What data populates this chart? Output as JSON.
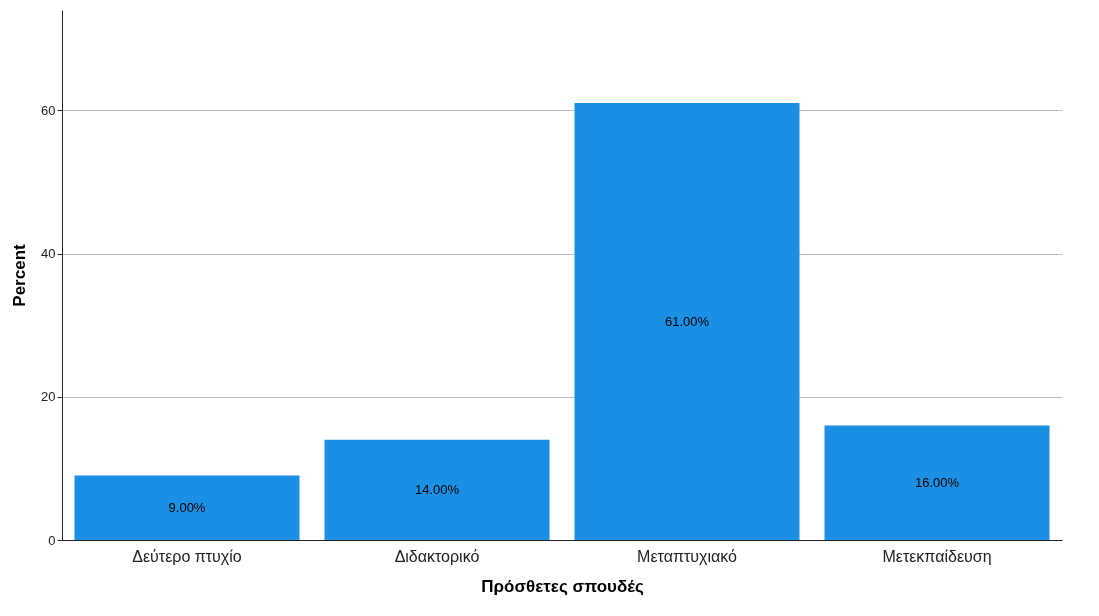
{
  "chart_data": {
    "type": "bar",
    "xlabel": "Πρόσθετες σπουδές",
    "ylabel": "Percent",
    "categories": [
      "Δεύτερο πτυχίο",
      "Διδακτορικό",
      "Μεταπτυχιακό",
      "Μετεκπαίδευση"
    ],
    "values": [
      9,
      14,
      61,
      16
    ],
    "value_labels": [
      "9.00%",
      "14.00%",
      "61.00%",
      "16.00%"
    ],
    "color": "#1a8fe3",
    "ylim": [
      0,
      74
    ],
    "yticks": [
      0,
      20,
      40,
      60
    ],
    "grid": "y"
  }
}
